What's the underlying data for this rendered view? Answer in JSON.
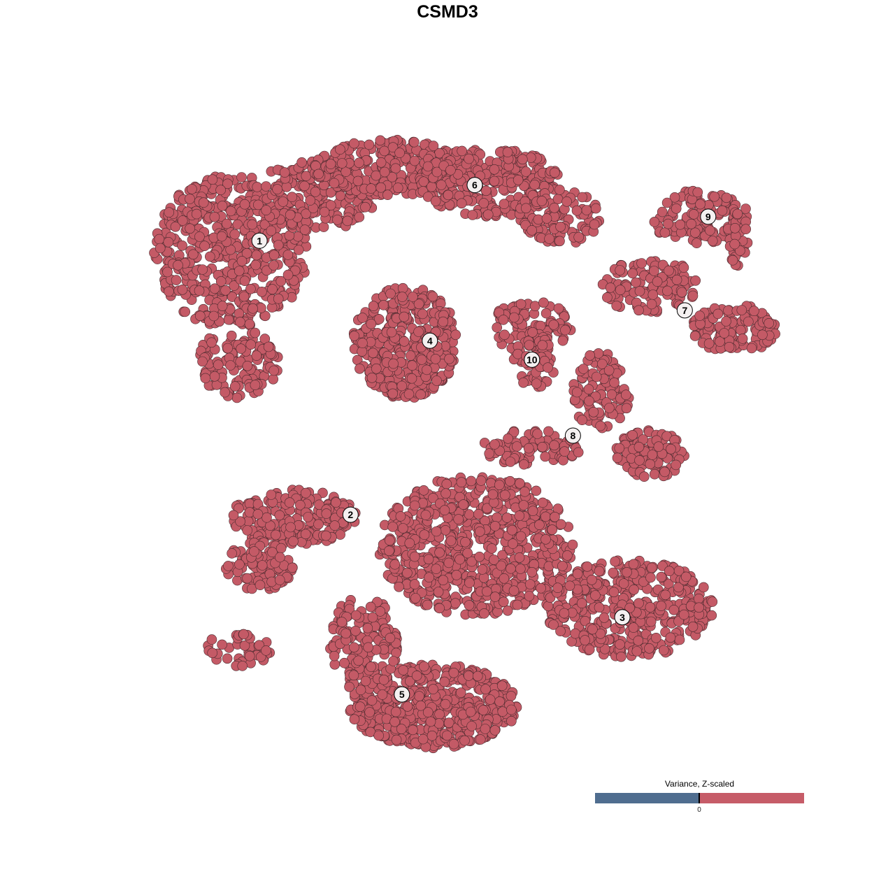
{
  "chart_data": {
    "type": "scatter",
    "title": "CSMD3",
    "xlabel": "",
    "ylabel": "",
    "axes_visible": false,
    "grid": false,
    "xlim": [
      -50,
      50
    ],
    "ylim": [
      -50,
      50
    ],
    "point_color": "#c45a66",
    "point_outline": "#4a2a2e",
    "clusters": [
      {
        "label": "1",
        "x": -31.6,
        "y": 32.4
      },
      {
        "label": "2",
        "x": -17.6,
        "y": -10.9
      },
      {
        "label": "3",
        "x": 24.2,
        "y": -27.1
      },
      {
        "label": "4",
        "x": -5.4,
        "y": 16.6
      },
      {
        "label": "5",
        "x": -9.7,
        "y": -39.3
      },
      {
        "label": "6",
        "x": 1.5,
        "y": 41.2
      },
      {
        "label": "7",
        "x": 33.8,
        "y": 21.4
      },
      {
        "label": "8",
        "x": 16.6,
        "y": 1.6
      },
      {
        "label": "9",
        "x": 37.4,
        "y": 36.2
      },
      {
        "label": "10",
        "x": 10.3,
        "y": 13.6
      }
    ],
    "legend": {
      "title": "Variance, Z-scaled",
      "placement": "bottom-right",
      "colors": [
        "#4f6d8f",
        "#c65c68"
      ],
      "tick_label": "0"
    }
  }
}
